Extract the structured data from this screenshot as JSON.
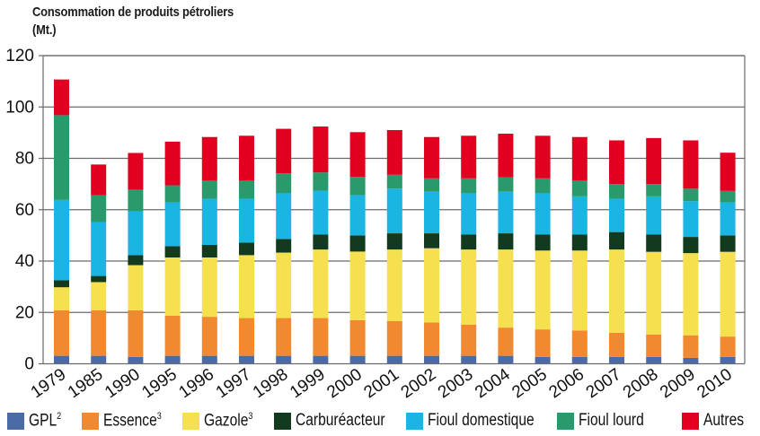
{
  "chart_data": {
    "type": "bar",
    "stacked": true,
    "title": "Consommation de produits pétroliers",
    "subtitle": "(Mt.)",
    "xlabel": "",
    "ylabel": "(Mt.)",
    "ylim": [
      0,
      120
    ],
    "yticks": [
      0,
      20,
      40,
      60,
      80,
      100,
      120
    ],
    "grid": true,
    "legend_position": "bottom",
    "categories": [
      "1979",
      "1985",
      "1990",
      "1995",
      "1996",
      "1997",
      "1998",
      "1999",
      "2000",
      "2001",
      "2002",
      "2003",
      "2004",
      "2005",
      "2006",
      "2007",
      "2008",
      "2009",
      "2010"
    ],
    "series": [
      {
        "name": "GPL",
        "sup": "2",
        "color": "#4a6aa8",
        "values": [
          3.1,
          3.1,
          2.7,
          3.1,
          3.1,
          3.1,
          3.1,
          3.1,
          3.1,
          3.1,
          3.1,
          3.1,
          3.1,
          2.7,
          2.7,
          2.7,
          2.7,
          2.3,
          2.7
        ]
      },
      {
        "name": "Essence",
        "sup": "3",
        "color": "#f0892f",
        "values": [
          17.7,
          17.7,
          18.1,
          15.6,
          15.2,
          14.7,
          14.7,
          14.7,
          13.9,
          13.5,
          13.0,
          12.1,
          11.0,
          10.7,
          10.3,
          9.4,
          8.7,
          8.8,
          7.9
        ]
      },
      {
        "name": "Gazole",
        "sup": "3",
        "color": "#f5e050",
        "values": [
          9.0,
          11.0,
          17.6,
          22.7,
          23.1,
          24.5,
          25.5,
          26.7,
          26.7,
          27.9,
          28.9,
          29.3,
          30.4,
          30.7,
          31.1,
          32.4,
          32.2,
          32.0,
          33.0
        ]
      },
      {
        "name": "Carburéacteur",
        "sup": "",
        "color": "#123a1e",
        "values": [
          2.7,
          2.4,
          3.9,
          4.4,
          4.9,
          4.9,
          5.3,
          5.8,
          6.3,
          6.3,
          5.8,
          5.8,
          6.3,
          6.2,
          6.2,
          6.8,
          6.7,
          6.3,
          6.4
        ]
      },
      {
        "name": "Fioul domestique",
        "sup": "",
        "color": "#1ab5e2",
        "values": [
          31.3,
          21.0,
          17.1,
          17.1,
          18.0,
          17.1,
          17.8,
          17.1,
          15.7,
          17.4,
          16.2,
          16.1,
          16.2,
          16.1,
          14.9,
          13.0,
          14.9,
          13.9,
          12.9
        ]
      },
      {
        "name": "Fioul lourd",
        "sup": "",
        "color": "#2a9a6c",
        "values": [
          33.0,
          10.4,
          8.4,
          6.6,
          7.0,
          7.0,
          7.8,
          7.1,
          7.1,
          5.4,
          5.2,
          5.8,
          5.6,
          5.8,
          6.1,
          5.7,
          4.8,
          4.9,
          4.4
        ]
      },
      {
        "name": "Autres",
        "sup": "",
        "color": "#e1001f",
        "values": [
          13.9,
          12.0,
          14.3,
          17.0,
          17.0,
          17.5,
          17.3,
          17.9,
          17.4,
          17.4,
          16.1,
          16.6,
          17.0,
          16.6,
          17.0,
          17.0,
          17.9,
          18.8,
          14.9
        ]
      }
    ]
  }
}
